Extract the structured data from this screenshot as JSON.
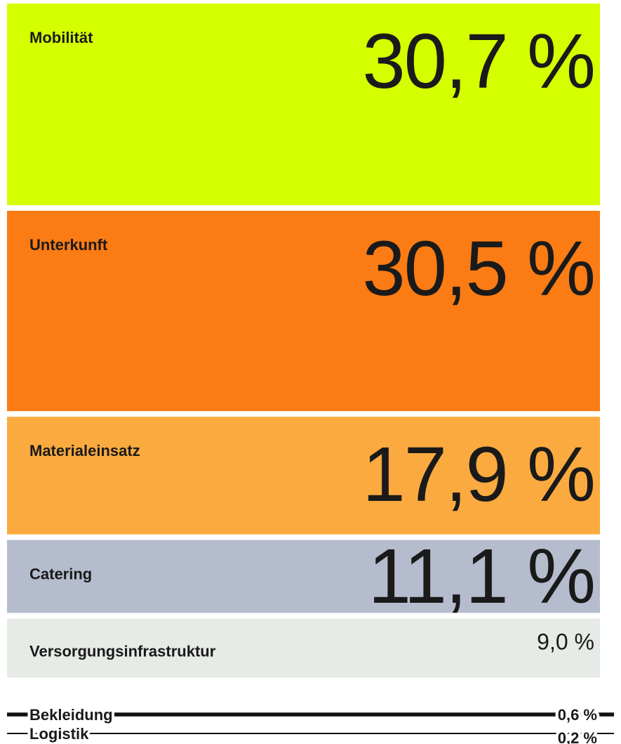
{
  "chart_data": {
    "type": "proportional-stack",
    "categories": [
      "Mobilität",
      "Unterkunft",
      "Materialeinsatz",
      "Catering",
      "Versorgungsinfrastruktur",
      "Bekleidung",
      "Logistik"
    ],
    "values": [
      30.7,
      30.5,
      17.9,
      11.1,
      9.0,
      0.6,
      0.2
    ],
    "value_labels": [
      "30,7 %",
      "30,5 %",
      "17,9 %",
      "11,1 %",
      "9,0 %",
      "0,6 %",
      "0,2 %"
    ],
    "colors": [
      "#d4ff00",
      "#fb7b14",
      "#fbaa3f",
      "#b5bccd",
      "#e6ebe6",
      "#111111",
      "#111111"
    ]
  }
}
